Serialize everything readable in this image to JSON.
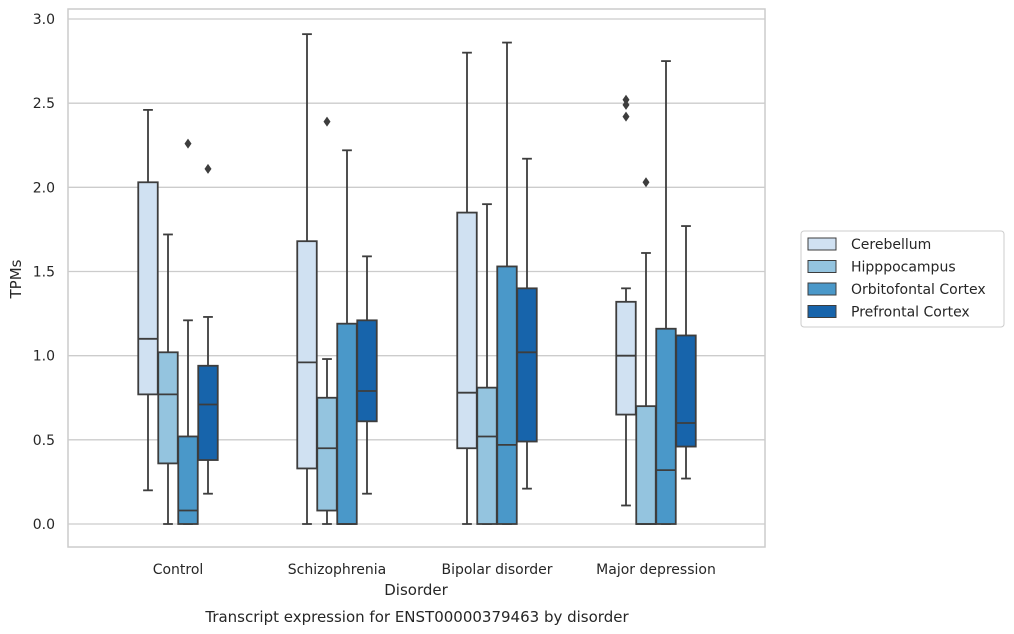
{
  "chart_data": {
    "type": "boxplot",
    "title": "",
    "caption": "Transcript expression for ENST00000379463 by disorder",
    "xlabel": "Disorder",
    "ylabel": "TPMs",
    "ylim": [
      -0.15,
      3.05
    ],
    "yticks": [
      0.0,
      0.5,
      1.0,
      1.5,
      2.0,
      2.5,
      3.0
    ],
    "ytick_labels": [
      "0.0",
      "0.5",
      "1.0",
      "1.5",
      "2.0",
      "2.5",
      "3.0"
    ],
    "grid": "horizontal",
    "legend_position": "right",
    "categories": [
      "Control",
      "Schizophrenia",
      "Bipolar disorder",
      "Major depression"
    ],
    "series": [
      {
        "name": "Cerebellum",
        "color": "#d0e1f2",
        "boxes": [
          {
            "whislo": 0.2,
            "q1": 0.77,
            "med": 1.1,
            "q3": 2.03,
            "whishi": 2.46,
            "fliers": []
          },
          {
            "whislo": 0.0,
            "q1": 0.33,
            "med": 0.96,
            "q3": 1.68,
            "whishi": 2.91,
            "fliers": []
          },
          {
            "whislo": 0.0,
            "q1": 0.45,
            "med": 0.78,
            "q3": 1.85,
            "whishi": 2.8,
            "fliers": []
          },
          {
            "whislo": 0.11,
            "q1": 0.65,
            "med": 1.0,
            "q3": 1.32,
            "whishi": 1.4,
            "fliers": [
              2.42,
              2.49,
              2.52
            ]
          }
        ]
      },
      {
        "name": "Hipppocampus",
        "color": "#94c4df",
        "boxes": [
          {
            "whislo": 0.0,
            "q1": 0.36,
            "med": 0.77,
            "q3": 1.02,
            "whishi": 1.72,
            "fliers": []
          },
          {
            "whislo": 0.0,
            "q1": 0.08,
            "med": 0.45,
            "q3": 0.75,
            "whishi": 0.98,
            "fliers": [
              2.39
            ]
          },
          {
            "whislo": 0.0,
            "q1": 0.0,
            "med": 0.52,
            "q3": 0.81,
            "whishi": 1.9,
            "fliers": []
          },
          {
            "whislo": 0.0,
            "q1": 0.0,
            "med": 0.0,
            "q3": 0.7,
            "whishi": 1.61,
            "fliers": [
              2.03
            ]
          }
        ]
      },
      {
        "name": "Orbitofontal Cortex",
        "color": "#4a98c9",
        "boxes": [
          {
            "whislo": 0.0,
            "q1": 0.0,
            "med": 0.08,
            "q3": 0.52,
            "whishi": 1.21,
            "fliers": [
              2.26
            ]
          },
          {
            "whislo": 0.0,
            "q1": 0.0,
            "med": 0.0,
            "q3": 1.19,
            "whishi": 2.22,
            "fliers": []
          },
          {
            "whislo": 0.0,
            "q1": 0.0,
            "med": 0.47,
            "q3": 1.53,
            "whishi": 2.86,
            "fliers": []
          },
          {
            "whislo": 0.0,
            "q1": 0.0,
            "med": 0.32,
            "q3": 1.16,
            "whishi": 2.75,
            "fliers": []
          }
        ]
      },
      {
        "name": "Prefrontal Cortex",
        "color": "#1764ab",
        "boxes": [
          {
            "whislo": 0.18,
            "q1": 0.38,
            "med": 0.71,
            "q3": 0.94,
            "whishi": 1.23,
            "fliers": [
              2.11
            ]
          },
          {
            "whislo": 0.18,
            "q1": 0.61,
            "med": 0.79,
            "q3": 1.21,
            "whishi": 1.59,
            "fliers": []
          },
          {
            "whislo": 0.21,
            "q1": 0.49,
            "med": 1.02,
            "q3": 1.4,
            "whishi": 2.17,
            "fliers": []
          },
          {
            "whislo": 0.27,
            "q1": 0.46,
            "med": 0.6,
            "q3": 1.12,
            "whishi": 1.77,
            "fliers": []
          }
        ]
      }
    ]
  }
}
